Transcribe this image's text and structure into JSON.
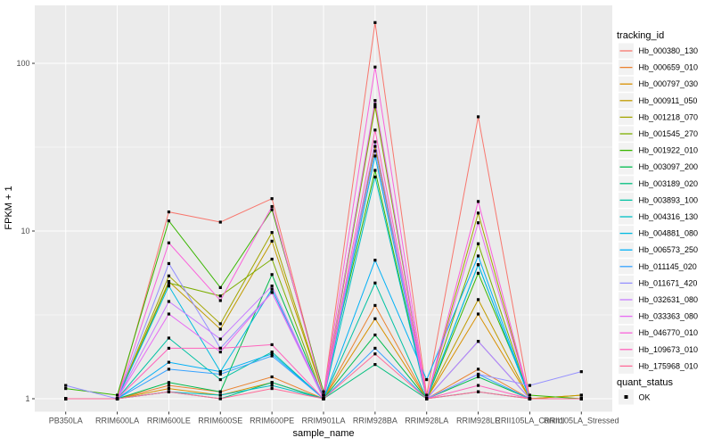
{
  "theme": {
    "background": "#FFFFFF",
    "panel_bg": "#EBEBEB",
    "grid_color": "#FFFFFF",
    "axis_text_color": "#4D4D4D",
    "tick_color": "#333333",
    "title_color": "#000000",
    "legend_key_bg": "#F2F2F2",
    "point_color": "#000000"
  },
  "chart_data": {
    "type": "line",
    "title": "",
    "xlabel": "sample_name",
    "ylabel": "FPKM + 1",
    "y_scale": "log10",
    "y_ticks": [
      "1",
      "10",
      "100"
    ],
    "y_tick_values": [
      1,
      10,
      100
    ],
    "y_minor_values": [
      3.1623,
      31.623
    ],
    "ylim": [
      0.83,
      220
    ],
    "grid": "on",
    "legend_position": "right",
    "point_shape": "black-square",
    "legends": {
      "color": {
        "title": "tracking_id"
      },
      "shape": {
        "title": "quant_status",
        "items": [
          {
            "label": "OK"
          }
        ]
      }
    },
    "categories": [
      "PB350LA",
      "RRIM600LA",
      "RRIM600LE",
      "RRIM600SE",
      "RRIM600PE",
      "RRIM901LA",
      "RRIM928BA",
      "RRIM928LA",
      "RRIM928LE",
      "RRII105LA_Control",
      "RRII105LA_Stressed"
    ],
    "series": [
      {
        "name": "Hb_000380_130",
        "color": "#F8766D",
        "values": [
          1.0,
          1.0,
          13.0,
          11.3,
          15.6,
          1.05,
          175,
          1.05,
          48,
          1.0,
          1.0
        ]
      },
      {
        "name": "Hb_000659_010",
        "color": "#EA8331",
        "values": [
          1.0,
          1.0,
          1.2,
          1.1,
          1.35,
          1.0,
          3.6,
          1.0,
          1.5,
          1.0,
          1.0
        ]
      },
      {
        "name": "Hb_000797_030",
        "color": "#D89000",
        "values": [
          1.0,
          1.0,
          1.15,
          1.05,
          1.25,
          1.0,
          3.0,
          1.0,
          3.2,
          1.0,
          1.05
        ]
      },
      {
        "name": "Hb_000911_050",
        "color": "#C09B00",
        "values": [
          1.0,
          1.0,
          5.0,
          2.6,
          8.7,
          1.05,
          57,
          1.0,
          3.9,
          1.0,
          1.05
        ]
      },
      {
        "name": "Hb_001218_070",
        "color": "#A3A500",
        "values": [
          1.0,
          1.0,
          5.4,
          2.8,
          9.8,
          1.05,
          32,
          1.0,
          12.8,
          1.0,
          1.0
        ]
      },
      {
        "name": "Hb_001545_270",
        "color": "#7CAE00",
        "values": [
          1.0,
          1.0,
          4.9,
          4.1,
          6.8,
          1.0,
          55,
          1.0,
          8.4,
          1.0,
          1.0
        ]
      },
      {
        "name": "Hb_001922_010",
        "color": "#39B600",
        "values": [
          1.15,
          1.05,
          11.5,
          4.6,
          13.4,
          1.1,
          23,
          1.0,
          5.6,
          1.05,
          1.0
        ]
      },
      {
        "name": "Hb_003097_200",
        "color": "#00BB4E",
        "values": [
          1.0,
          1.0,
          1.25,
          1.1,
          5.5,
          1.0,
          2.4,
          1.0,
          1.35,
          1.0,
          1.0
        ]
      },
      {
        "name": "Hb_003189_020",
        "color": "#00BF7D",
        "values": [
          1.0,
          1.0,
          1.1,
          1.0,
          1.25,
          1.0,
          1.6,
          1.0,
          1.1,
          1.0,
          1.0
        ]
      },
      {
        "name": "Hb_003893_100",
        "color": "#00C1A3",
        "values": [
          1.0,
          1.0,
          2.3,
          1.3,
          1.9,
          1.0,
          4.9,
          1.0,
          2.2,
          1.0,
          1.0
        ]
      },
      {
        "name": "Hb_004316_130",
        "color": "#00BFC4",
        "values": [
          1.0,
          1.0,
          1.1,
          1.05,
          1.2,
          1.0,
          21,
          1.0,
          6.3,
          1.0,
          1.0
        ]
      },
      {
        "name": "Hb_004881_080",
        "color": "#00BAE0",
        "values": [
          1.0,
          1.0,
          4.7,
          1.45,
          4.5,
          1.0,
          28,
          1.0,
          6.3,
          1.0,
          1.0
        ]
      },
      {
        "name": "Hb_006573_250",
        "color": "#00B0F6",
        "values": [
          1.0,
          1.0,
          1.65,
          1.45,
          1.85,
          1.0,
          6.7,
          1.3,
          7.1,
          1.0,
          1.0
        ]
      },
      {
        "name": "Hb_011145_020",
        "color": "#35A2FF",
        "values": [
          1.0,
          1.0,
          1.5,
          1.4,
          1.8,
          1.0,
          2.0,
          1.0,
          1.4,
          1.0,
          1.0
        ]
      },
      {
        "name": "Hb_011671_420",
        "color": "#9590FF",
        "values": [
          1.2,
          1.0,
          6.4,
          2.0,
          4.3,
          1.05,
          30,
          1.0,
          1.4,
          1.2,
          1.45
        ]
      },
      {
        "name": "Hb_032631_080",
        "color": "#C77CFF",
        "values": [
          1.0,
          1.0,
          3.8,
          2.27,
          4.7,
          1.0,
          34,
          1.0,
          2.2,
          1.0,
          1.0
        ]
      },
      {
        "name": "Hb_033363_080",
        "color": "#E76BF3",
        "values": [
          1.0,
          1.0,
          3.2,
          1.9,
          4.3,
          1.0,
          60,
          1.0,
          11.2,
          1.0,
          1.0
        ]
      },
      {
        "name": "Hb_046770_010",
        "color": "#FA62DB",
        "values": [
          1.0,
          1.0,
          8.5,
          3.85,
          14.0,
          1.05,
          95,
          1.0,
          15.0,
          1.0,
          1.0
        ]
      },
      {
        "name": "Hb_109673_010",
        "color": "#FF62BC",
        "values": [
          1.0,
          1.0,
          2.0,
          2.0,
          2.1,
          1.0,
          40,
          1.0,
          1.2,
          1.0,
          1.0
        ]
      },
      {
        "name": "Hb_175968_010",
        "color": "#FF6A98",
        "values": [
          1.0,
          1.0,
          1.1,
          1.0,
          1.15,
          1.0,
          1.85,
          1.0,
          1.1,
          1.0,
          1.0
        ]
      }
    ]
  }
}
